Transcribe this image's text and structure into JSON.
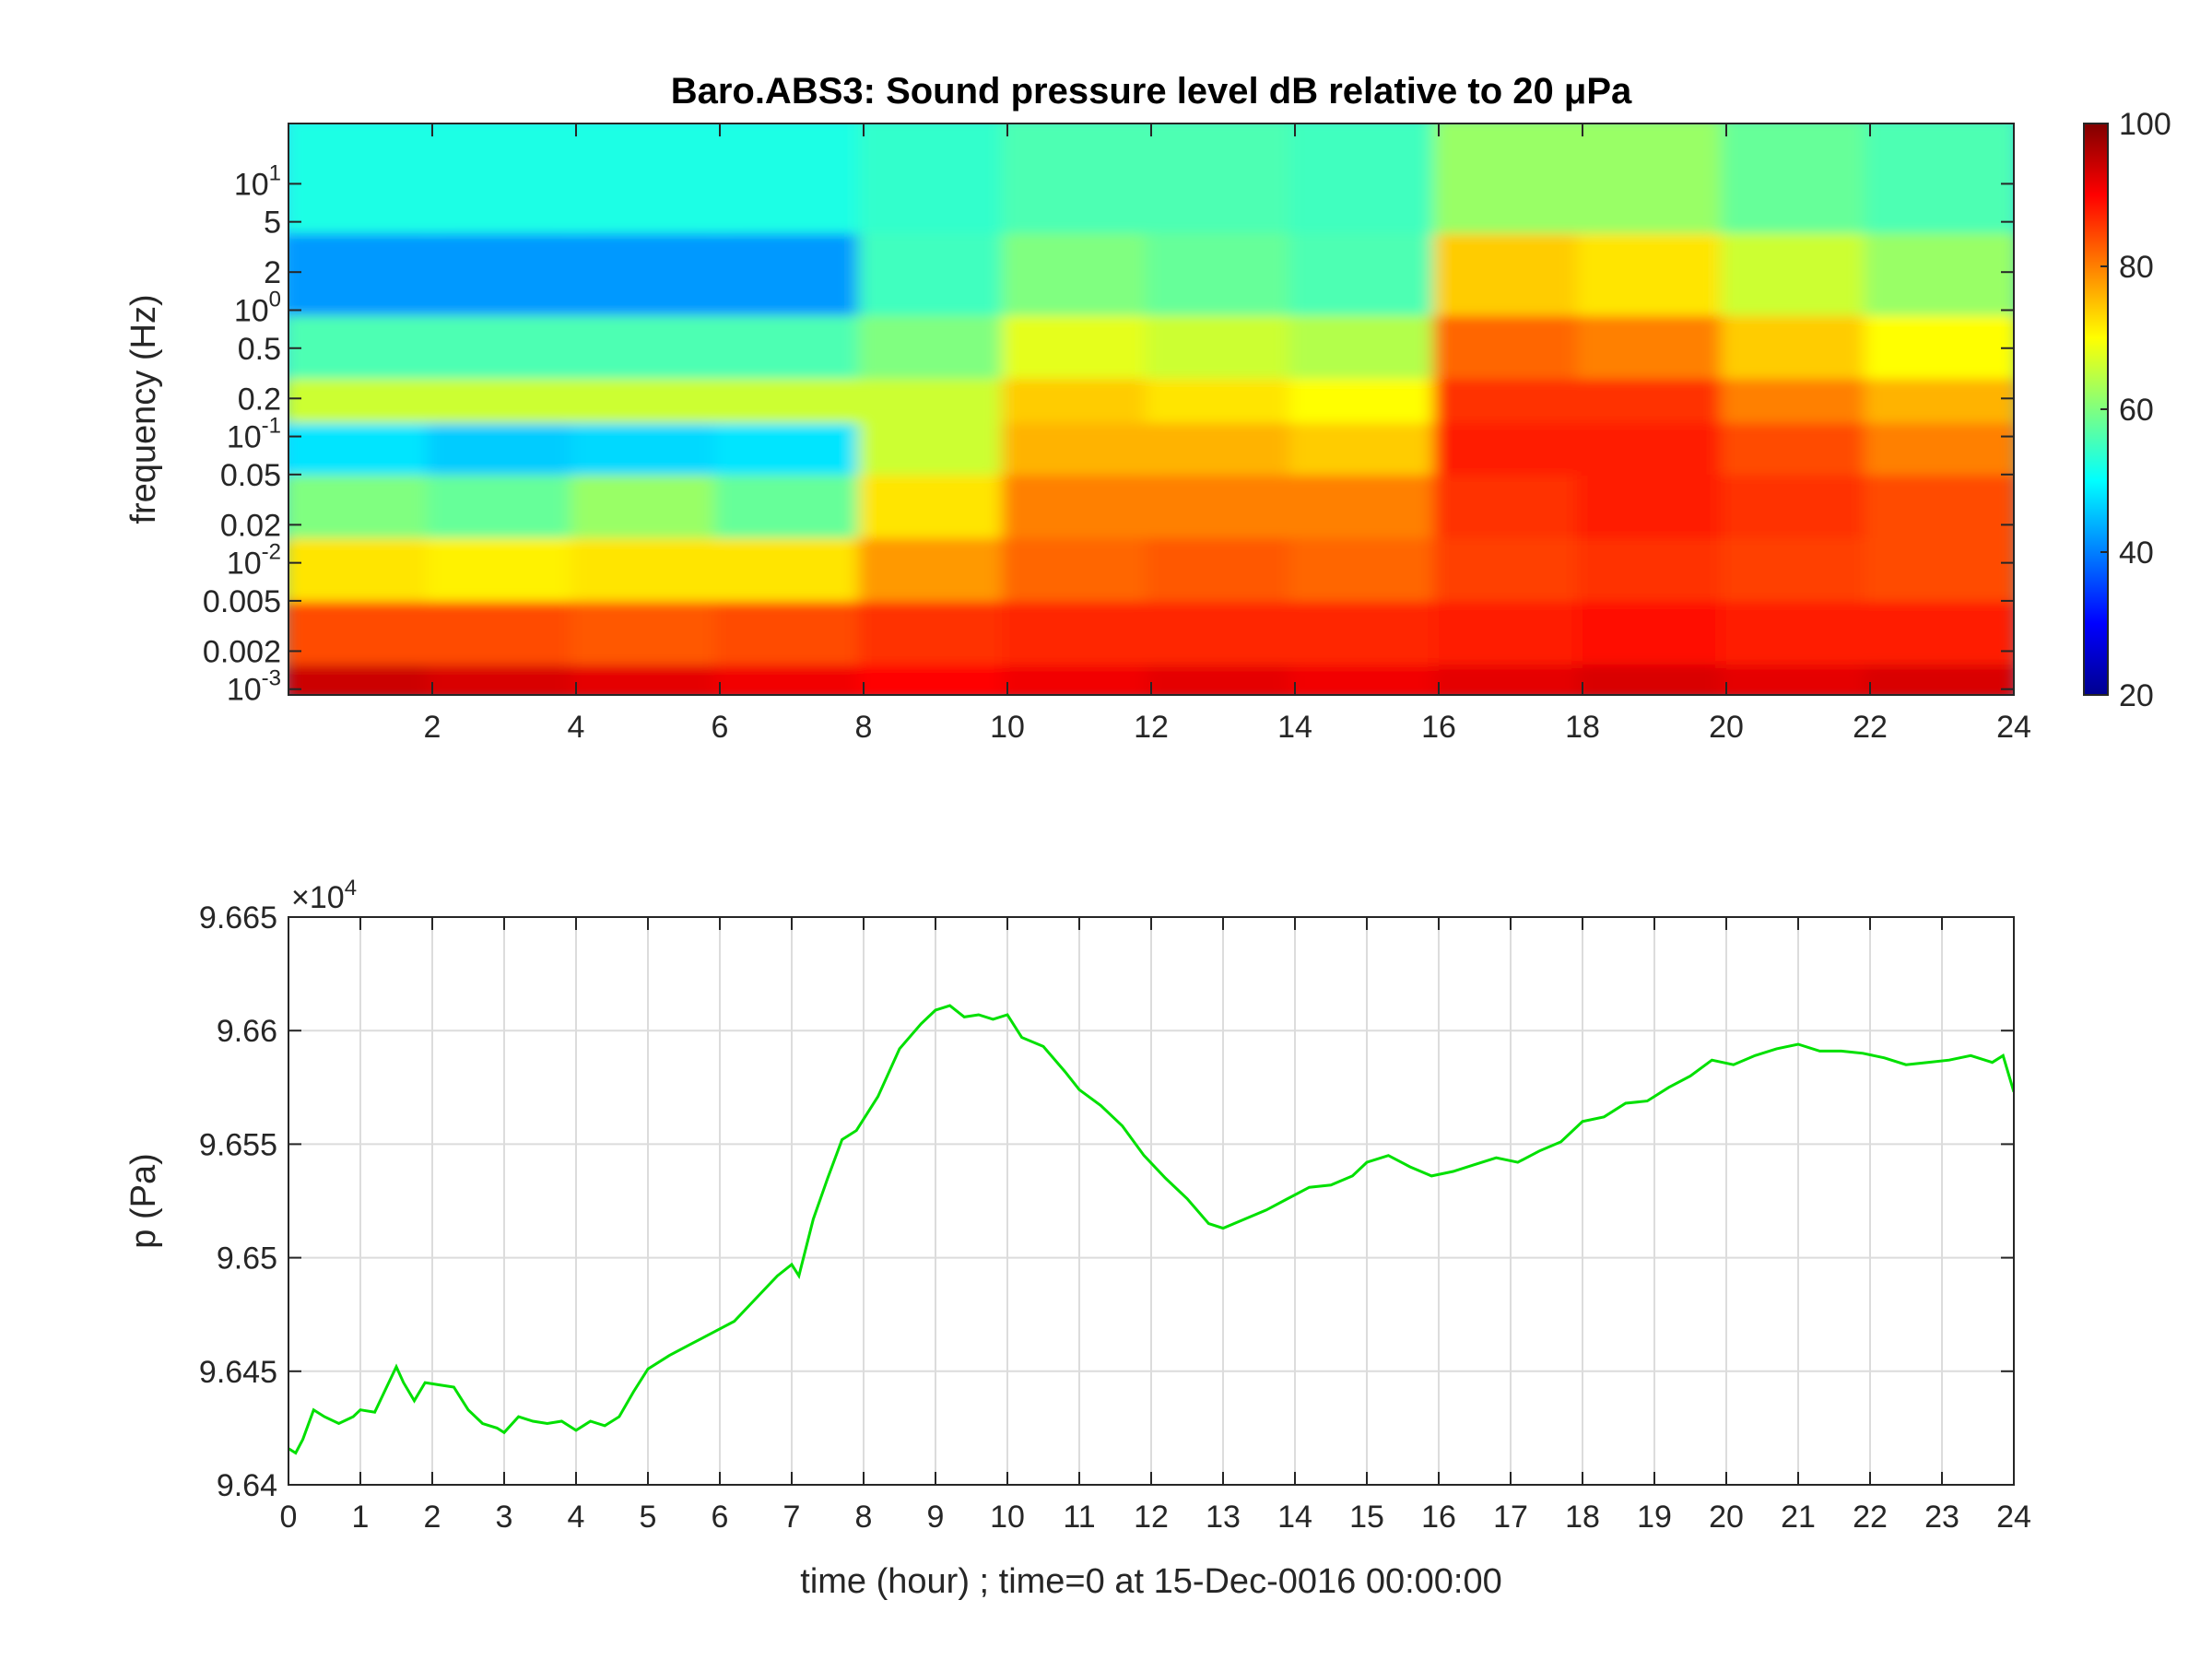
{
  "chart_data": [
    {
      "type": "heatmap",
      "title": "Baro.ABS3: Sound pressure level dB relative to 20 μPa",
      "ylabel": "frequency (Hz)",
      "xlim": [
        0,
        24
      ],
      "y_scale": "log",
      "ylim": [
        0.0009,
        30
      ],
      "x_ticks": [
        2,
        4,
        6,
        8,
        10,
        12,
        14,
        16,
        18,
        20,
        22,
        24
      ],
      "y_ticks": [
        {
          "value": 0.001,
          "base": "10",
          "exp": "-3",
          "label": ""
        },
        {
          "value": 0.002,
          "base": "",
          "exp": "",
          "label": "0.002"
        },
        {
          "value": 0.005,
          "base": "",
          "exp": "",
          "label": "0.005"
        },
        {
          "value": 0.01,
          "base": "10",
          "exp": "-2",
          "label": ""
        },
        {
          "value": 0.02,
          "base": "",
          "exp": "",
          "label": "0.02"
        },
        {
          "value": 0.05,
          "base": "",
          "exp": "",
          "label": "0.05"
        },
        {
          "value": 0.1,
          "base": "10",
          "exp": "-1",
          "label": ""
        },
        {
          "value": 0.2,
          "base": "",
          "exp": "",
          "label": "0.2"
        },
        {
          "value": 0.5,
          "base": "",
          "exp": "",
          "label": "0.5"
        },
        {
          "value": 1,
          "base": "10",
          "exp": "0",
          "label": ""
        },
        {
          "value": 2,
          "base": "",
          "exp": "",
          "label": "2"
        },
        {
          "value": 5,
          "base": "",
          "exp": "",
          "label": "5"
        },
        {
          "value": 10,
          "base": "10",
          "exp": "1",
          "label": ""
        }
      ],
      "colorbar": {
        "min": 20,
        "max": 100,
        "ticks": [
          20,
          40,
          60,
          80,
          100
        ],
        "colormap": "jet"
      },
      "time_bins_hour": [
        1,
        3,
        5,
        7,
        9,
        11,
        13,
        15,
        17,
        19,
        21,
        23
      ],
      "freq_bins_hz": [
        0.001,
        0.003,
        0.01,
        0.03,
        0.1,
        0.2,
        0.5,
        2,
        10
      ],
      "values_db": [
        [
          94,
          93,
          92,
          91,
          90,
          91,
          92,
          91,
          92,
          93,
          92,
          93
        ],
        [
          84,
          84,
          83,
          84,
          86,
          87,
          87,
          87,
          88,
          89,
          88,
          88
        ],
        [
          72,
          71,
          72,
          72,
          78,
          82,
          83,
          82,
          85,
          86,
          85,
          84
        ],
        [
          60,
          58,
          62,
          58,
          72,
          80,
          80,
          80,
          86,
          88,
          86,
          84
        ],
        [
          48,
          46,
          47,
          48,
          66,
          76,
          76,
          74,
          88,
          88,
          84,
          80
        ],
        [
          66,
          66,
          66,
          66,
          66,
          74,
          72,
          70,
          86,
          86,
          80,
          76
        ],
        [
          56,
          56,
          56,
          56,
          60,
          68,
          66,
          64,
          82,
          80,
          74,
          70
        ],
        [
          42,
          42,
          42,
          42,
          55,
          60,
          58,
          56,
          74,
          72,
          66,
          62
        ],
        [
          52,
          52,
          52,
          52,
          54,
          56,
          56,
          55,
          62,
          62,
          58,
          56
        ]
      ]
    },
    {
      "type": "line",
      "xlabel": "time (hour) ; time=0 at 15-Dec-0016 00:00:00",
      "ylabel": "p (Pa)",
      "y_multiplier_base": "×10",
      "y_multiplier_exp": "4",
      "xlim": [
        0,
        24
      ],
      "ylim": [
        96400,
        96650
      ],
      "x_ticks": [
        0,
        1,
        2,
        3,
        4,
        5,
        6,
        7,
        8,
        9,
        10,
        11,
        12,
        13,
        14,
        15,
        16,
        17,
        18,
        19,
        20,
        21,
        22,
        23,
        24
      ],
      "y_ticks": [
        {
          "value": 96400,
          "label": "9.64"
        },
        {
          "value": 96450,
          "label": "9.645"
        },
        {
          "value": 96500,
          "label": "9.65"
        },
        {
          "value": 96550,
          "label": "9.655"
        },
        {
          "value": 96600,
          "label": "9.66"
        },
        {
          "value": 96650,
          "label": "9.665"
        }
      ],
      "grid": true,
      "line_color": "#00e000",
      "series": [
        {
          "x": [
            0,
            0.1,
            0.2,
            0.35,
            0.5,
            0.7,
            0.9,
            1.0,
            1.2,
            1.35,
            1.5,
            1.6,
            1.75,
            1.9,
            2.1,
            2.3,
            2.5,
            2.7,
            2.9,
            3.0,
            3.2,
            3.4,
            3.6,
            3.8,
            4.0,
            4.2,
            4.4,
            4.6,
            4.8,
            5.0,
            5.3,
            5.6,
            5.9,
            6.2,
            6.5,
            6.8,
            7.0,
            7.1,
            7.3,
            7.5,
            7.7,
            7.9,
            8.2,
            8.5,
            8.8,
            9.0,
            9.2,
            9.4,
            9.6,
            9.8,
            10.0,
            10.2,
            10.5,
            10.8,
            11.0,
            11.3,
            11.6,
            11.9,
            12.2,
            12.5,
            12.8,
            13.0,
            13.3,
            13.6,
            13.9,
            14.2,
            14.5,
            14.8,
            15.0,
            15.3,
            15.6,
            15.9,
            16.2,
            16.5,
            16.8,
            17.1,
            17.4,
            17.7,
            18.0,
            18.3,
            18.6,
            18.9,
            19.2,
            19.5,
            19.8,
            20.1,
            20.4,
            20.7,
            21.0,
            21.3,
            21.6,
            21.9,
            22.2,
            22.5,
            22.8,
            23.1,
            23.4,
            23.7,
            23.85,
            24.0
          ],
          "y": [
            96416,
            96414,
            96420,
            96433,
            96430,
            96427,
            96430,
            96433,
            96432,
            96442,
            96452,
            96445,
            96437,
            96445,
            96444,
            96443,
            96433,
            96427,
            96425,
            96423,
            96430,
            96428,
            96427,
            96428,
            96424,
            96428,
            96426,
            96430,
            96441,
            96451,
            96457,
            96462,
            96467,
            96472,
            96482,
            96492,
            96497,
            96492,
            96517,
            96535,
            96552,
            96556,
            96571,
            96592,
            96603,
            96609,
            96611,
            96606,
            96607,
            96605,
            96607,
            96597,
            96593,
            96582,
            96574,
            96567,
            96558,
            96545,
            96535,
            96526,
            96515,
            96513,
            96517,
            96521,
            96526,
            96531,
            96532,
            96536,
            96542,
            96545,
            96540,
            96536,
            96538,
            96541,
            96544,
            96542,
            96547,
            96551,
            96560,
            96562,
            96568,
            96569,
            96575,
            96580,
            96587,
            96585,
            96589,
            96592,
            96594,
            96591,
            96591,
            96590,
            96588,
            96585,
            96586,
            96587,
            96589,
            96586,
            96589,
            96573
          ]
        }
      ]
    }
  ]
}
